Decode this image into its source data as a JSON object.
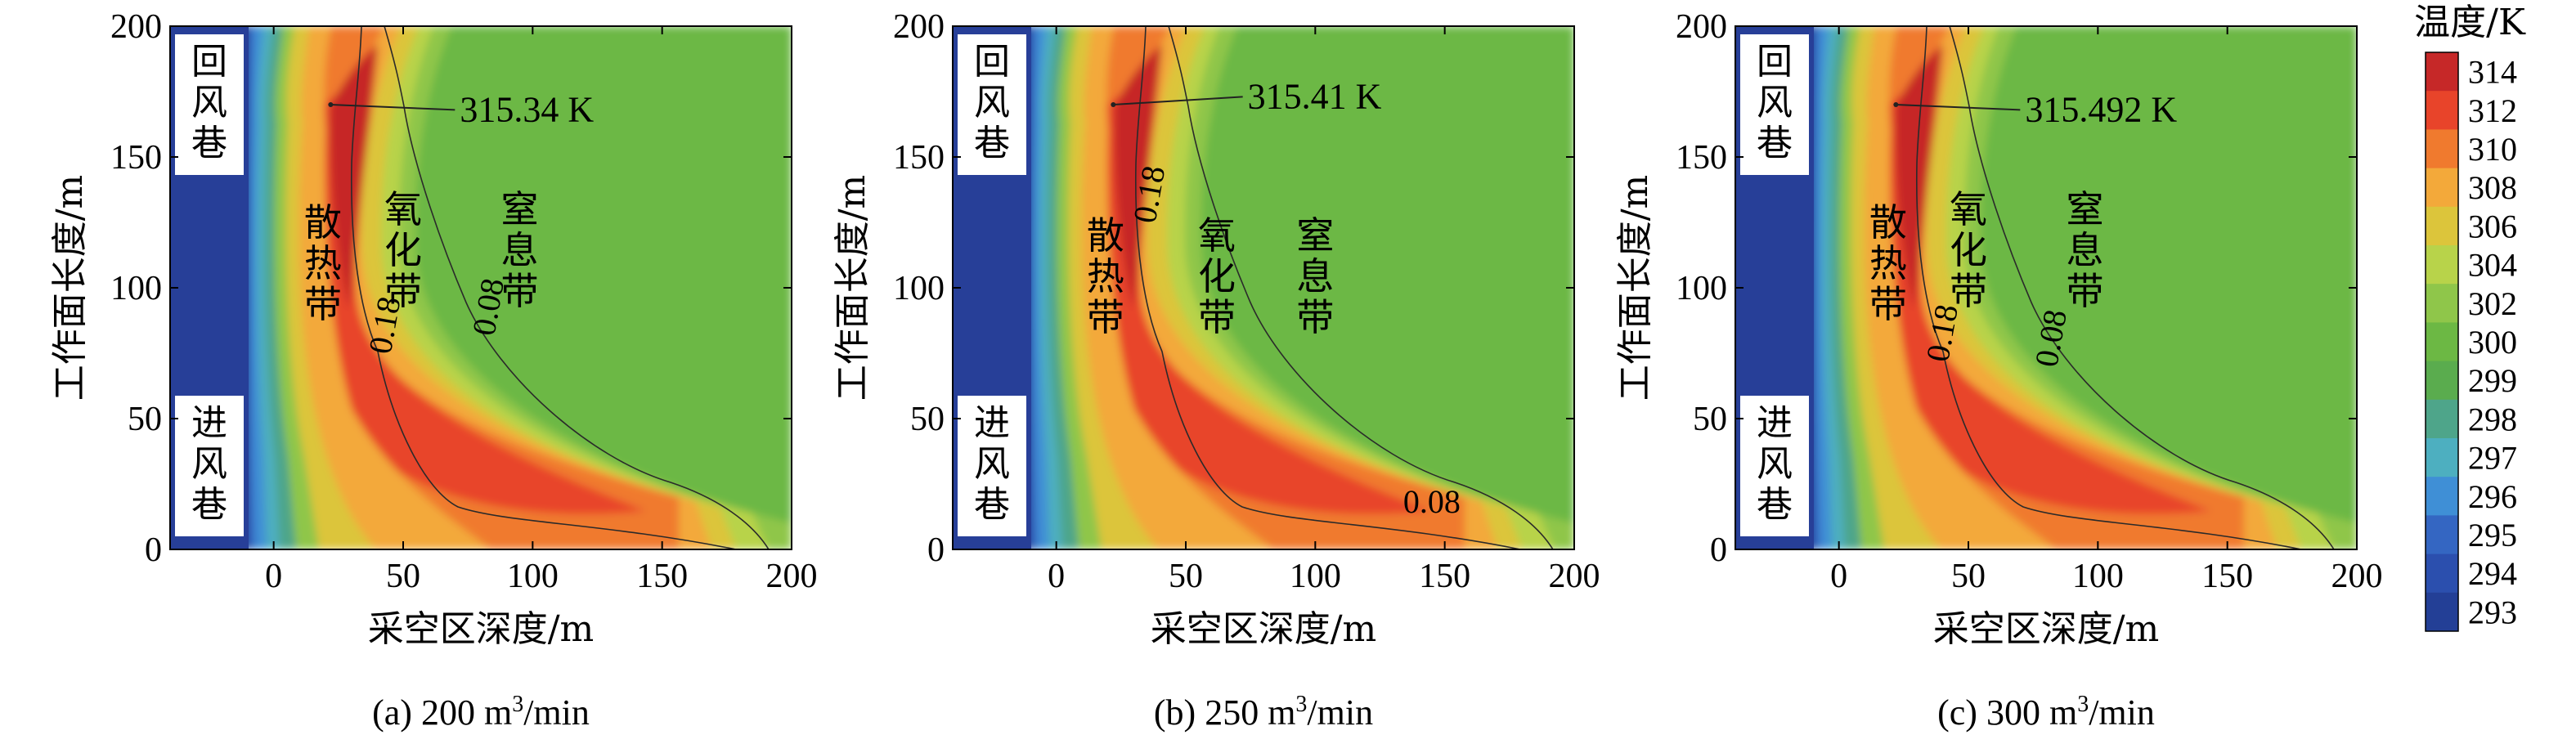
{
  "chart_data": {
    "type": "heatmap",
    "xlabel": "采空区深度/m",
    "ylabel": "工作面长度/m",
    "xlim": [
      -40,
      200
    ],
    "ylim": [
      0,
      200
    ],
    "xticks": [
      0,
      50,
      100,
      150,
      200
    ],
    "yticks": [
      0,
      50,
      100,
      150,
      200
    ],
    "zone_labels": {
      "return": [
        "回",
        "风",
        "巷"
      ],
      "intake": [
        "进",
        "风",
        "巷"
      ],
      "heat": [
        "散",
        "热",
        "带"
      ],
      "oxidation": [
        "氧",
        "化",
        "带"
      ],
      "suffocation": [
        "窒",
        "息",
        "带"
      ]
    },
    "colorbar": {
      "title": "温度/K",
      "levels": [
        "314",
        "312",
        "310",
        "308",
        "306",
        "304",
        "302",
        "300",
        "299",
        "298",
        "297",
        "296",
        "295",
        "294",
        "293"
      ],
      "colors": [
        "#c62828",
        "#e8442a",
        "#f07a2e",
        "#f3a93a",
        "#dcc53b",
        "#b8d34a",
        "#8fc64a",
        "#6cb844",
        "#5aac4e",
        "#4ea58a",
        "#4dafc0",
        "#3f8fd6",
        "#3466c2",
        "#2b4fae",
        "#233f96"
      ]
    },
    "panels": [
      {
        "caption_prefix": "(a) 200 m",
        "caption_sup": "3",
        "caption_suffix": "/min",
        "max_label": "315.34 K",
        "max_point": [
          22,
          170
        ],
        "contour_labels": [
          {
            "text": "0.18",
            "x": 47,
            "y": 85
          },
          {
            "text": "0.08",
            "x": 87,
            "y": 92
          }
        ]
      },
      {
        "caption_prefix": "(b) 250 m",
        "caption_sup": "3",
        "caption_suffix": "/min",
        "max_label": "315.41 K",
        "max_point": [
          22,
          170
        ],
        "contour_labels": [
          {
            "text": "0.18",
            "x": 40,
            "y": 135
          },
          {
            "text": "0.08",
            "x": 145,
            "y": 14
          }
        ]
      },
      {
        "caption_prefix": "(c) 300 m",
        "caption_sup": "3",
        "caption_suffix": "/min",
        "max_label": "315.492 K",
        "max_point": [
          22,
          170
        ],
        "contour_labels": [
          {
            "text": "0.18",
            "x": 44,
            "y": 82
          },
          {
            "text": "0.08",
            "x": 86,
            "y": 80
          }
        ]
      }
    ]
  }
}
